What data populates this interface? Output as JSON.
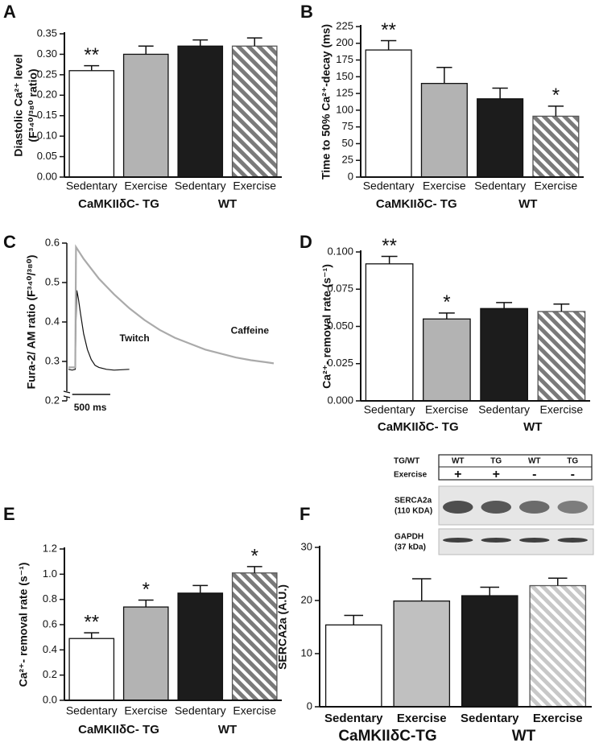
{
  "chart_data": [
    {
      "type": "bar",
      "panel": "A",
      "ylabel": [
        "Diastolic Ca²⁺ level",
        "(F³⁴⁰/³⁸⁰ ratio)"
      ],
      "categories": [
        "Sedentary",
        "Exercise",
        "Sedentary",
        "Exercise"
      ],
      "groups": [
        "CaMKIIδC- TG",
        "WT"
      ],
      "values": [
        0.26,
        0.3,
        0.32,
        0.32
      ],
      "errors": [
        0.012,
        0.02,
        0.015,
        0.02
      ],
      "significance": [
        "**",
        null,
        null,
        null
      ],
      "bar_fills": [
        "#ffffff",
        "#b3b3b3",
        "#1c1c1c",
        "#7a7a7a"
      ],
      "hatched": [
        false,
        false,
        false,
        true
      ],
      "ylim": [
        0,
        0.35
      ],
      "yticks": [
        {
          "value": 0,
          "label": "0.00"
        },
        {
          "value": 0.05,
          "label": "0.05"
        },
        {
          "value": 0.1,
          "label": "0.10"
        },
        {
          "value": 0.15,
          "label": "0.15"
        },
        {
          "value": 0.2,
          "label": "0.20"
        },
        {
          "value": 0.25,
          "label": "0.25"
        },
        {
          "value": 0.3,
          "label": "0.30"
        },
        {
          "value": 0.35,
          "label": "0.35"
        }
      ]
    },
    {
      "type": "bar",
      "panel": "B",
      "ylabel": [
        "Time to 50% Ca²⁺-decay (ms)"
      ],
      "categories": [
        "Sedentary",
        "Exercise",
        "Sedentary",
        "Exercise"
      ],
      "groups": [
        "CaMKIIδC- TG",
        "WT"
      ],
      "values": [
        190,
        140,
        117,
        91
      ],
      "errors": [
        14,
        24,
        16,
        15
      ],
      "significance": [
        "**",
        null,
        null,
        "*"
      ],
      "bar_fills": [
        "#ffffff",
        "#b3b3b3",
        "#1c1c1c",
        "#7a7a7a"
      ],
      "hatched": [
        false,
        false,
        false,
        true
      ],
      "ylim": [
        0,
        225
      ],
      "yticks": [
        0,
        25,
        50,
        75,
        100,
        125,
        150,
        175,
        200,
        225
      ]
    },
    {
      "type": "line",
      "panel": "C",
      "ylabel": [
        "Fura-2/ AM ratio (F³⁴⁰/³⁸⁰)"
      ],
      "xlim": [
        0,
        2700
      ],
      "ylim": [
        0.2,
        0.6
      ],
      "yticks": [
        0.2,
        0.3,
        0.4,
        0.5,
        0.6
      ],
      "scale_bar": {
        "value": 500,
        "label": "500 ms"
      },
      "series": [
        {
          "name": "Twitch",
          "color": "#111111",
          "x": [
            0,
            50,
            90,
            100,
            110,
            130,
            160,
            200,
            250,
            300,
            350,
            400,
            500,
            600,
            700,
            800
          ],
          "values": [
            0.28,
            0.278,
            0.28,
            0.4,
            0.48,
            0.46,
            0.42,
            0.37,
            0.33,
            0.305,
            0.29,
            0.285,
            0.28,
            0.278,
            0.279,
            0.28
          ]
        },
        {
          "name": "Caffeine",
          "color": "#aaaaaa",
          "x": [
            0,
            90,
            100,
            150,
            200,
            300,
            400,
            500,
            600,
            800,
            1000,
            1200,
            1400,
            1600,
            1800,
            2000,
            2200,
            2400,
            2600,
            2700
          ],
          "values": [
            0.285,
            0.285,
            0.59,
            0.575,
            0.56,
            0.535,
            0.51,
            0.49,
            0.47,
            0.435,
            0.405,
            0.38,
            0.36,
            0.345,
            0.33,
            0.32,
            0.31,
            0.303,
            0.298,
            0.295
          ]
        }
      ]
    },
    {
      "type": "bar",
      "panel": "D",
      "ylabel": [
        "Ca²⁺- removal rate  (s⁻¹)"
      ],
      "categories": [
        "Sedentary",
        "Exercise",
        "Sedentary",
        "Exercise"
      ],
      "groups": [
        "CaMKIIδC- TG",
        "WT"
      ],
      "values": [
        0.092,
        0.055,
        0.062,
        0.06
      ],
      "errors": [
        0.005,
        0.004,
        0.004,
        0.005
      ],
      "significance": [
        "**",
        "*",
        null,
        null
      ],
      "bar_fills": [
        "#ffffff",
        "#b3b3b3",
        "#1c1c1c",
        "#7a7a7a"
      ],
      "hatched": [
        false,
        false,
        false,
        true
      ],
      "ylim": [
        0,
        0.1
      ],
      "yticks": [
        {
          "value": 0,
          "label": "0.000"
        },
        {
          "value": 0.025,
          "label": "0.025"
        },
        {
          "value": 0.05,
          "label": "0.050"
        },
        {
          "value": 0.075,
          "label": "0.075"
        },
        {
          "value": 0.1,
          "label": "0.100"
        }
      ]
    },
    {
      "type": "bar",
      "panel": "E",
      "ylabel": [
        "Ca²⁺- removal rate (s⁻¹)"
      ],
      "categories": [
        "Sedentary",
        "Exercise",
        "Sedentary",
        "Exercise"
      ],
      "groups": [
        "CaMKIIδC- TG",
        "WT"
      ],
      "values": [
        0.49,
        0.74,
        0.85,
        1.01
      ],
      "errors": [
        0.045,
        0.055,
        0.06,
        0.05
      ],
      "significance": [
        "**",
        "*",
        null,
        "*"
      ],
      "bar_fills": [
        "#ffffff",
        "#b3b3b3",
        "#1c1c1c",
        "#7a7a7a"
      ],
      "hatched": [
        false,
        false,
        false,
        true
      ],
      "ylim": [
        0,
        1.2
      ],
      "yticks": [
        {
          "value": 0,
          "label": "0.0"
        },
        {
          "value": 0.2,
          "label": "0.2"
        },
        {
          "value": 0.4,
          "label": "0.4"
        },
        {
          "value": 0.6,
          "label": "0.6"
        },
        {
          "value": 0.8,
          "label": "0.8"
        },
        {
          "value": 1,
          "label": "1.0"
        },
        {
          "value": 1.2,
          "label": "1.2"
        }
      ]
    },
    {
      "type": "bar",
      "panel": "F",
      "ylabel": [
        "SERCA2a (A.U.)"
      ],
      "categories": [
        "Sedentary",
        "Exercise",
        "Sedentary",
        "Exercise"
      ],
      "groups": [
        "CaMKIIδC-TG",
        "WT"
      ],
      "values": [
        15.4,
        19.9,
        20.9,
        22.8
      ],
      "errors": [
        1.8,
        4.2,
        1.6,
        1.4
      ],
      "significance": [
        null,
        null,
        null,
        null
      ],
      "bar_fills": [
        "#ffffff",
        "#c0c0c0",
        "#1c1c1c",
        "#c8c8c8"
      ],
      "hatched": [
        false,
        false,
        false,
        true
      ],
      "ylim": [
        0,
        30
      ],
      "yticks": [
        0,
        10,
        20,
        30
      ],
      "blot": {
        "header_rows": [
          {
            "label": "TG/WT",
            "cells": [
              "WT",
              "TG",
              "WT",
              "TG"
            ]
          },
          {
            "label": "Exercise",
            "cells": [
              "+",
              "+",
              "-",
              "-"
            ]
          }
        ],
        "bands": [
          {
            "label": "SERCA2a",
            "sublabel": "(110 KDA)"
          },
          {
            "label": "GAPDH",
            "sublabel": "(37 kDa)"
          }
        ]
      }
    }
  ]
}
